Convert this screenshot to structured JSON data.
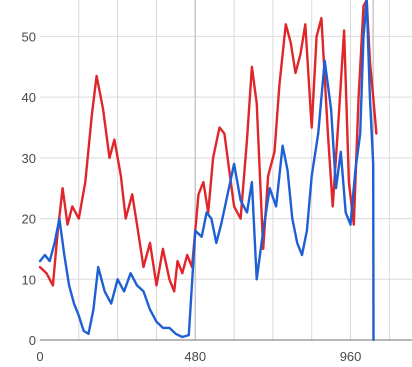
{
  "chart_data": {
    "type": "line",
    "title": "",
    "xlabel": "",
    "ylabel": "",
    "xlim": [
      0,
      1150
    ],
    "ylim": [
      0,
      56
    ],
    "x_ticks": [
      0,
      480,
      960
    ],
    "x_tick_labels": [
      "0",
      "480",
      "960"
    ],
    "y_ticks": [
      0,
      10,
      20,
      30,
      40,
      50
    ],
    "y_tick_labels": [
      "0",
      "10",
      "20",
      "30",
      "40",
      "50"
    ],
    "grid": true,
    "vertical_markers": [
      480,
      1030
    ],
    "series": [
      {
        "color": "#e0262b",
        "x": [
          0,
          20,
          40,
          55,
          70,
          85,
          100,
          120,
          140,
          160,
          175,
          195,
          215,
          230,
          250,
          265,
          285,
          300,
          320,
          340,
          360,
          380,
          400,
          415,
          425,
          440,
          455,
          470,
          490,
          505,
          520,
          535,
          555,
          570,
          585,
          600,
          620,
          640,
          655,
          670,
          690,
          705,
          725,
          740,
          760,
          775,
          790,
          805,
          820,
          840,
          855,
          870,
          890,
          905,
          925,
          940,
          955,
          970,
          985,
          1000,
          1010,
          1020,
          1030,
          1040
        ],
        "y": [
          12,
          11,
          9,
          18,
          25,
          19,
          22,
          20,
          26,
          37,
          43.5,
          38,
          30,
          33,
          27,
          20,
          24,
          19,
          12,
          16,
          9,
          15,
          10,
          8,
          13,
          11,
          14,
          12,
          24,
          26,
          21,
          30,
          35,
          34,
          28,
          22,
          20,
          33,
          45,
          39,
          15,
          27,
          31,
          42,
          52,
          49,
          44,
          47,
          52,
          35,
          50,
          53,
          34,
          22,
          38,
          51,
          26,
          19,
          40,
          55,
          56,
          46,
          40,
          34
        ]
      },
      {
        "color": "#1f5fd4",
        "x": [
          0,
          15,
          30,
          45,
          60,
          75,
          90,
          105,
          120,
          135,
          150,
          165,
          180,
          200,
          220,
          240,
          260,
          280,
          300,
          320,
          340,
          360,
          380,
          400,
          420,
          440,
          460,
          480,
          500,
          515,
          530,
          545,
          560,
          580,
          600,
          620,
          640,
          655,
          670,
          690,
          710,
          730,
          750,
          765,
          780,
          795,
          810,
          825,
          840,
          860,
          880,
          900,
          915,
          930,
          945,
          960,
          975,
          990,
          1000,
          1010,
          1020,
          1030,
          1031
        ],
        "y": [
          13,
          14,
          13,
          16,
          20,
          14,
          9,
          6,
          4,
          1.5,
          1,
          5,
          12,
          8,
          6,
          10,
          8,
          11,
          9,
          8,
          5,
          3,
          2,
          2,
          1,
          0.5,
          0.8,
          18,
          17,
          21,
          20,
          16,
          19,
          24,
          29,
          23,
          21,
          26,
          10,
          18,
          25,
          22,
          32,
          28,
          20,
          16,
          14,
          18,
          27,
          34,
          46,
          38,
          25,
          31,
          21,
          19,
          28,
          34,
          50,
          56,
          40,
          29,
          0
        ]
      }
    ]
  }
}
